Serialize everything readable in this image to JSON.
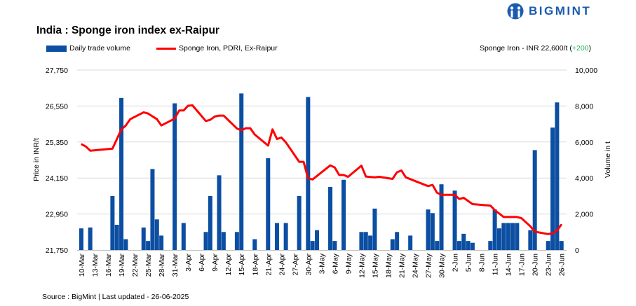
{
  "header": {
    "title": "India : Sponge iron index ex-Raipur",
    "logo_text": "BIGMINT",
    "price_note": "Sponge Iron - INR 22,600/t (",
    "price_change": "+200",
    "price_note_end": ")"
  },
  "footer": {
    "source": "Source : BigMint | Last updated - 26-06-2025"
  },
  "colors": {
    "bar": "#0b4ea2",
    "line": "#ff0000",
    "grid": "#d9d9d9",
    "positive": "#20b04b",
    "logo": "#1a5bb0"
  },
  "chart_data": {
    "type": "bar+line",
    "title": "India : Sponge iron index ex-Raipur",
    "start_date": "2025-03-10",
    "end_date": "2025-06-26",
    "x_tick_labels": [
      "10-Mar",
      "13-Mar",
      "16-Mar",
      "19-Mar",
      "22-Mar",
      "25-Mar",
      "28-Mar",
      "31-Mar",
      "3-Apr",
      "6-Apr",
      "9-Apr",
      "12-Apr",
      "15-Apr",
      "18-Apr",
      "21-Apr",
      "24-Apr",
      "27-Apr",
      "30-Apr",
      "3-May",
      "6-May",
      "9-May",
      "12-May",
      "15-May",
      "18-May",
      "21-May",
      "24-May",
      "27-May",
      "30-May",
      "2-Jun",
      "5-Jun",
      "8-Jun",
      "11-Jun",
      "14-Jun",
      "17-Jun",
      "20-Jun",
      "23-Jun",
      "26-Jun"
    ],
    "y_left": {
      "label": "Price in INR/t",
      "range": [
        21750,
        27750
      ],
      "ticks": [
        "21,750",
        "22,950",
        "24,150",
        "25,350",
        "26,550",
        "27,750"
      ]
    },
    "y_right": {
      "label": "Volume in t",
      "range": [
        0,
        10000
      ],
      "ticks": [
        "0",
        "2,000",
        "4,000",
        "6,000",
        "8,000",
        "10,000"
      ]
    },
    "legend": [
      {
        "name": "Daily trade volume",
        "type": "bar"
      },
      {
        "name": "Sponge Iron, PDRI, Ex-Raipur",
        "type": "line"
      }
    ],
    "grid": true,
    "volume_series": {
      "name": "Daily trade volume",
      "points": [
        [
          "2025-03-10",
          1200
        ],
        [
          "2025-03-12",
          1250
        ],
        [
          "2025-03-17",
          3000
        ],
        [
          "2025-03-18",
          1400
        ],
        [
          "2025-03-19",
          8450
        ],
        [
          "2025-03-20",
          600
        ],
        [
          "2025-03-24",
          1250
        ],
        [
          "2025-03-25",
          500
        ],
        [
          "2025-03-26",
          4500
        ],
        [
          "2025-03-27",
          1700
        ],
        [
          "2025-03-28",
          800
        ],
        [
          "2025-03-31",
          8150
        ],
        [
          "2025-04-02",
          1500
        ],
        [
          "2025-04-07",
          1000
        ],
        [
          "2025-04-08",
          3000
        ],
        [
          "2025-04-10",
          4150
        ],
        [
          "2025-04-11",
          1000
        ],
        [
          "2025-04-14",
          1000
        ],
        [
          "2025-04-15",
          8700
        ],
        [
          "2025-04-18",
          600
        ],
        [
          "2025-04-21",
          5100
        ],
        [
          "2025-04-23",
          1500
        ],
        [
          "2025-04-25",
          1500
        ],
        [
          "2025-04-28",
          3000
        ],
        [
          "2025-04-30",
          8500
        ],
        [
          "2025-05-01",
          500
        ],
        [
          "2025-05-02",
          1100
        ],
        [
          "2025-05-05",
          3500
        ],
        [
          "2025-05-06",
          500
        ],
        [
          "2025-05-08",
          3900
        ],
        [
          "2025-05-12",
          1000
        ],
        [
          "2025-05-13",
          1000
        ],
        [
          "2025-05-14",
          800
        ],
        [
          "2025-05-15",
          2300
        ],
        [
          "2025-05-19",
          600
        ],
        [
          "2025-05-20",
          1000
        ],
        [
          "2025-05-23",
          800
        ],
        [
          "2025-05-27",
          2250
        ],
        [
          "2025-05-28",
          2050
        ],
        [
          "2025-05-29",
          500
        ],
        [
          "2025-05-30",
          3650
        ],
        [
          "2025-06-02",
          3300
        ],
        [
          "2025-06-03",
          500
        ],
        [
          "2025-06-04",
          900
        ],
        [
          "2025-06-05",
          500
        ],
        [
          "2025-06-06",
          400
        ],
        [
          "2025-06-10",
          500
        ],
        [
          "2025-06-11",
          2250
        ],
        [
          "2025-06-12",
          1200
        ],
        [
          "2025-06-13",
          1500
        ],
        [
          "2025-06-14",
          1500
        ],
        [
          "2025-06-15",
          1500
        ],
        [
          "2025-06-16",
          1500
        ],
        [
          "2025-06-19",
          1100
        ],
        [
          "2025-06-20",
          5550
        ],
        [
          "2025-06-23",
          500
        ],
        [
          "2025-06-24",
          6800
        ],
        [
          "2025-06-25",
          8200
        ],
        [
          "2025-06-26",
          500
        ]
      ]
    },
    "price_series": {
      "name": "Sponge Iron, PDRI, Ex-Raipur",
      "points": [
        [
          "2025-03-10",
          25280
        ],
        [
          "2025-03-11",
          25200
        ],
        [
          "2025-03-12",
          25060
        ],
        [
          "2025-03-17",
          25130
        ],
        [
          "2025-03-19",
          25770
        ],
        [
          "2025-03-20",
          25900
        ],
        [
          "2025-03-21",
          26110
        ],
        [
          "2025-03-24",
          26340
        ],
        [
          "2025-03-25",
          26300
        ],
        [
          "2025-03-27",
          26110
        ],
        [
          "2025-03-28",
          25900
        ],
        [
          "2025-03-31",
          26130
        ],
        [
          "2025-04-01",
          26400
        ],
        [
          "2025-04-02",
          26400
        ],
        [
          "2025-04-03",
          26560
        ],
        [
          "2025-04-04",
          26570
        ],
        [
          "2025-04-07",
          26050
        ],
        [
          "2025-04-08",
          26090
        ],
        [
          "2025-04-09",
          26200
        ],
        [
          "2025-04-10",
          26230
        ],
        [
          "2025-04-11",
          26230
        ],
        [
          "2025-04-14",
          25800
        ],
        [
          "2025-04-15",
          25740
        ],
        [
          "2025-04-16",
          25810
        ],
        [
          "2025-04-17",
          25810
        ],
        [
          "2025-04-18",
          25600
        ],
        [
          "2025-04-21",
          25230
        ],
        [
          "2025-04-22",
          25770
        ],
        [
          "2025-04-23",
          25450
        ],
        [
          "2025-04-24",
          25500
        ],
        [
          "2025-04-25",
          25340
        ],
        [
          "2025-04-28",
          24690
        ],
        [
          "2025-04-29",
          24690
        ],
        [
          "2025-04-30",
          24140
        ],
        [
          "2025-05-01",
          24100
        ],
        [
          "2025-05-05",
          24570
        ],
        [
          "2025-05-06",
          24500
        ],
        [
          "2025-05-07",
          24250
        ],
        [
          "2025-05-08",
          24250
        ],
        [
          "2025-05-09",
          24190
        ],
        [
          "2025-05-12",
          24560
        ],
        [
          "2025-05-13",
          24200
        ],
        [
          "2025-05-15",
          24170
        ],
        [
          "2025-05-16",
          24190
        ],
        [
          "2025-05-19",
          24120
        ],
        [
          "2025-05-20",
          24340
        ],
        [
          "2025-05-21",
          24400
        ],
        [
          "2025-05-22",
          24170
        ],
        [
          "2025-05-27",
          23880
        ],
        [
          "2025-05-28",
          23920
        ],
        [
          "2025-05-29",
          23660
        ],
        [
          "2025-05-30",
          23590
        ],
        [
          "2025-06-02",
          23590
        ],
        [
          "2025-06-03",
          23450
        ],
        [
          "2025-06-04",
          23490
        ],
        [
          "2025-06-06",
          23280
        ],
        [
          "2025-06-10",
          23230
        ],
        [
          "2025-06-11",
          23080
        ],
        [
          "2025-06-13",
          22850
        ],
        [
          "2025-06-16",
          22850
        ],
        [
          "2025-06-17",
          22810
        ],
        [
          "2025-06-19",
          22540
        ],
        [
          "2025-06-20",
          22360
        ],
        [
          "2025-06-23",
          22280
        ],
        [
          "2025-06-24",
          22300
        ],
        [
          "2025-06-25",
          22400
        ],
        [
          "2025-06-26",
          22600
        ]
      ]
    }
  }
}
